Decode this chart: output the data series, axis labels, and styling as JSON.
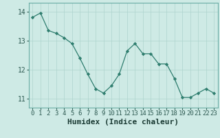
{
  "x": [
    0,
    1,
    2,
    3,
    4,
    5,
    6,
    7,
    8,
    9,
    10,
    11,
    12,
    13,
    14,
    15,
    16,
    17,
    18,
    19,
    20,
    21,
    22,
    23
  ],
  "y": [
    13.8,
    13.95,
    13.35,
    13.25,
    13.1,
    12.9,
    12.4,
    11.85,
    11.35,
    11.2,
    11.45,
    11.85,
    12.65,
    12.9,
    12.55,
    12.55,
    12.2,
    12.2,
    11.7,
    11.05,
    11.05,
    11.2,
    11.35,
    11.2
  ],
  "xlabel": "Humidex (Indice chaleur)",
  "ylim": [
    10.7,
    14.3
  ],
  "xlim": [
    -0.5,
    23.5
  ],
  "yticks": [
    11,
    12,
    13,
    14
  ],
  "xticks": [
    0,
    1,
    2,
    3,
    4,
    5,
    6,
    7,
    8,
    9,
    10,
    11,
    12,
    13,
    14,
    15,
    16,
    17,
    18,
    19,
    20,
    21,
    22,
    23
  ],
  "line_color": "#2e7d6e",
  "marker_color": "#2e7d6e",
  "bg_color": "#ceeae5",
  "grid_color": "#aed4ce",
  "axis_color": "#6aada5",
  "tick_color": "#2e5a52",
  "xlabel_color": "#1a3a33",
  "tick_fontsize": 6.5,
  "xlabel_fontsize": 8.0
}
